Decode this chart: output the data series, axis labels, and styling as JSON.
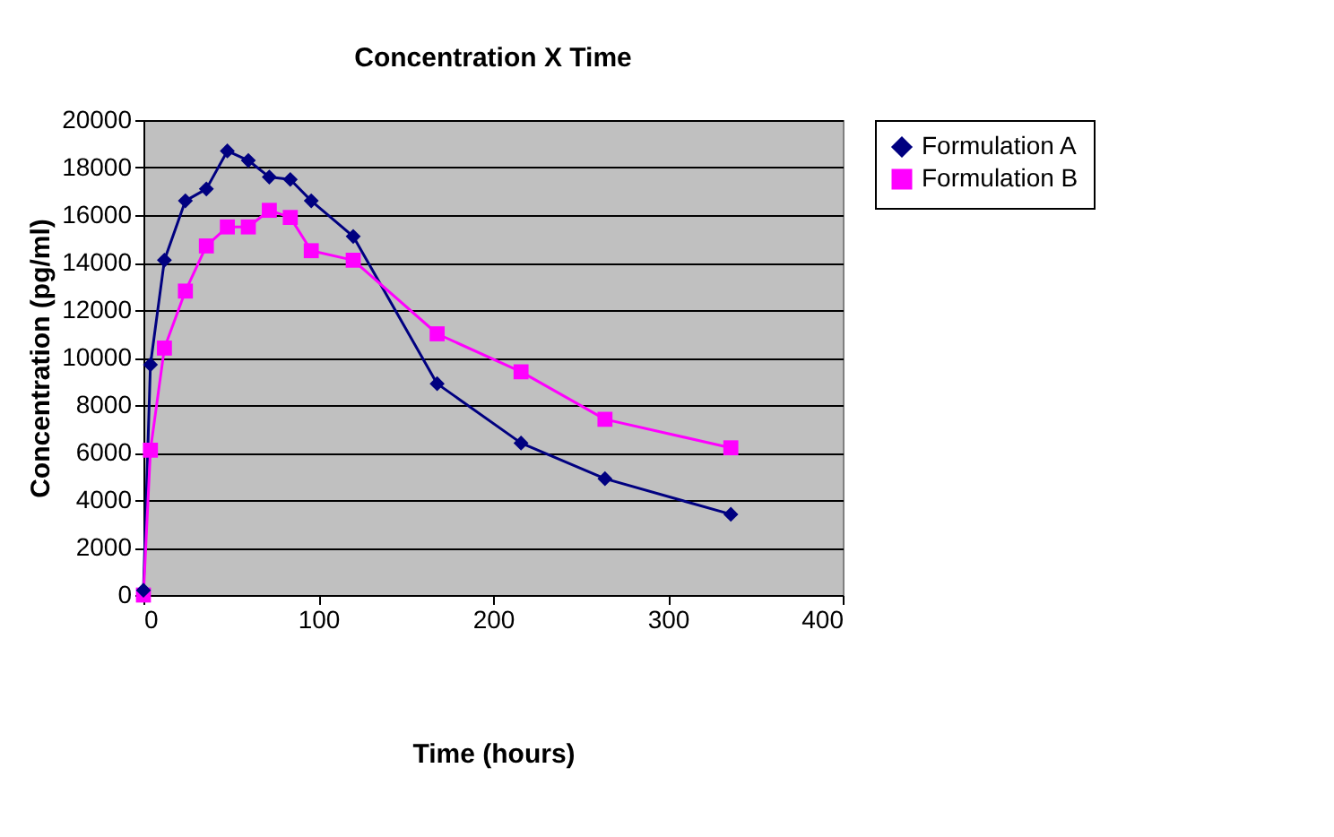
{
  "chart_data": {
    "type": "line",
    "title": "Concentration X Time",
    "xlabel": "Time (hours)",
    "ylabel": "Concentration (pg/ml)",
    "x": [
      0,
      4,
      12,
      24,
      36,
      48,
      60,
      72,
      84,
      96,
      120,
      168,
      216,
      264,
      336
    ],
    "series": [
      {
        "name": "Formulation A",
        "color": "#000080",
        "marker": "diamond",
        "values": [
          200,
          9700,
          14100,
          16600,
          17100,
          18700,
          18300,
          17600,
          17500,
          16600,
          15100,
          8900,
          6400,
          4900,
          3400
        ]
      },
      {
        "name": "Formulation B",
        "color": "#ff00ff",
        "marker": "square",
        "values": [
          0,
          6100,
          10400,
          12800,
          14700,
          15500,
          15500,
          16200,
          15900,
          14500,
          14100,
          11000,
          9400,
          7400,
          6200
        ]
      }
    ],
    "xlim": [
      0,
      400
    ],
    "xticks": [
      0,
      100,
      200,
      300,
      400
    ],
    "ylim": [
      0,
      20000
    ],
    "yticks": [
      0,
      2000,
      4000,
      6000,
      8000,
      10000,
      12000,
      14000,
      16000,
      18000,
      20000
    ],
    "grid": "y",
    "legend": "right",
    "line_style": "solid"
  }
}
